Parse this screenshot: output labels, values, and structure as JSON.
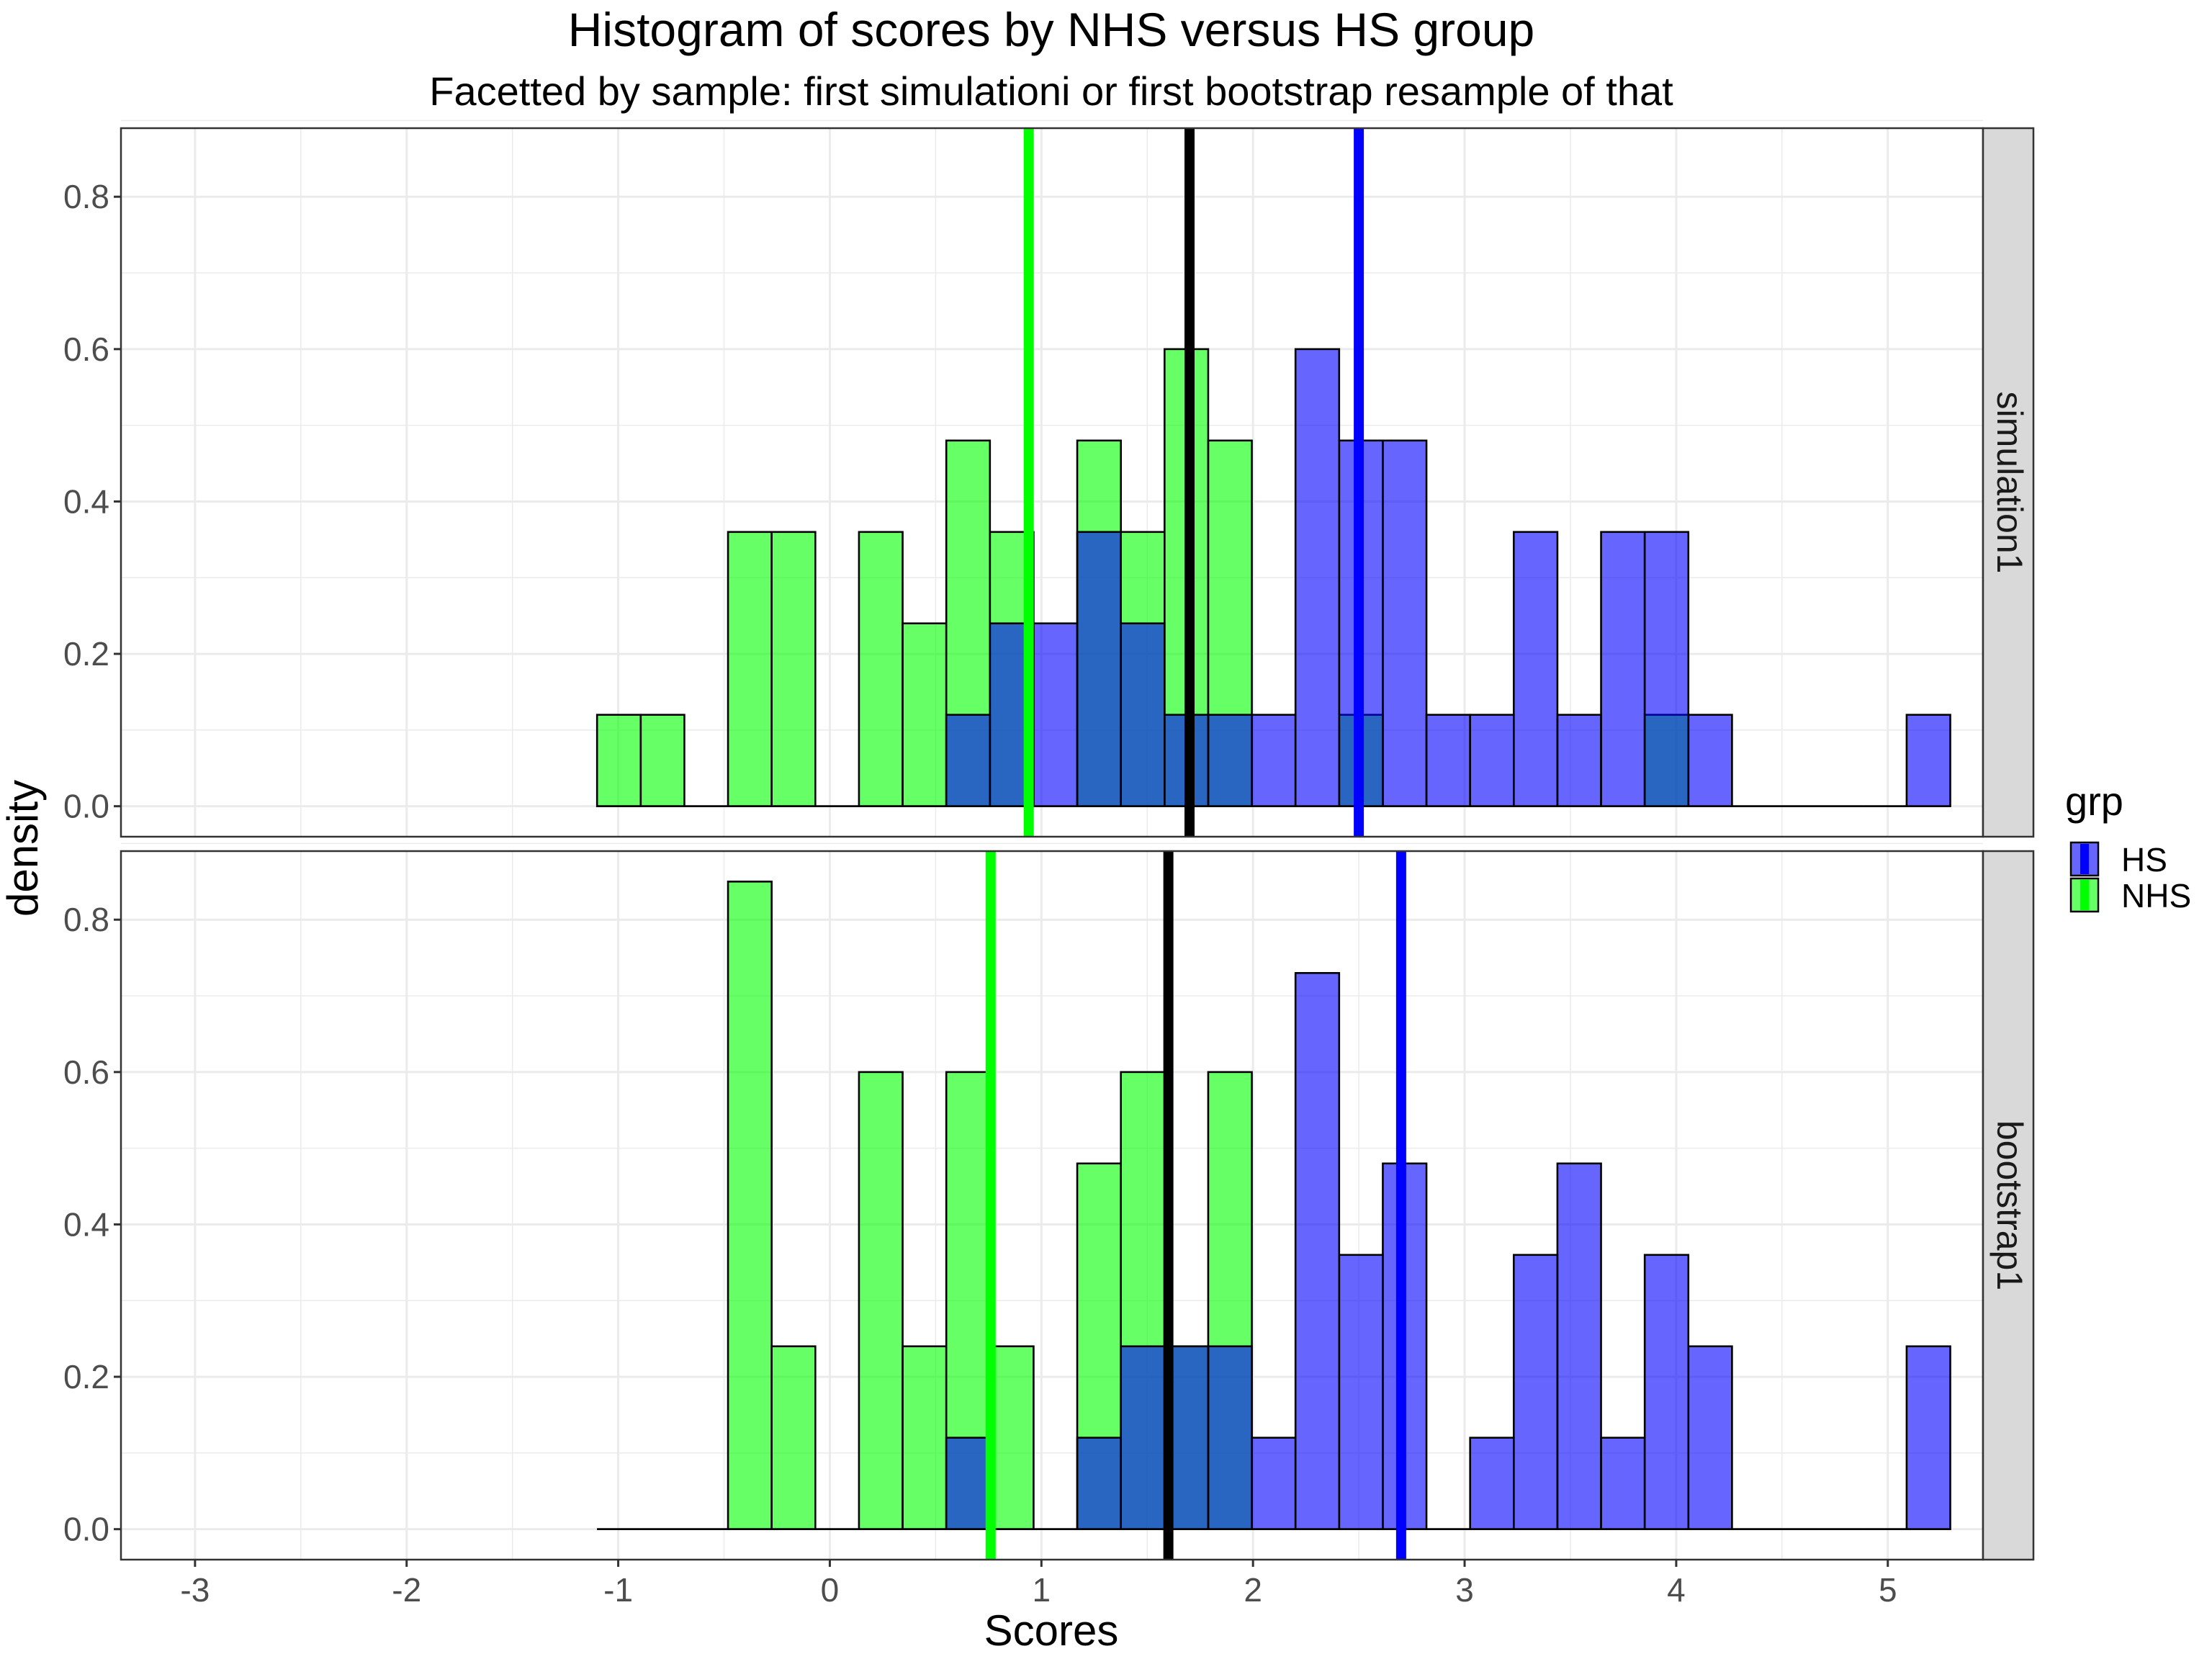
{
  "chart_data": {
    "type": "histogram",
    "title": "Histogram of scores by NHS versus HS group",
    "subtitle": "Facetted by sample: first simulationi or first bootstrap resample of that",
    "xlabel": "Scores",
    "ylabel": "density",
    "xlim": [
      -3.35,
      5.45
    ],
    "ylim": [
      -0.04,
      0.89
    ],
    "x_ticks": [
      -3,
      -2,
      -1,
      0,
      1,
      2,
      3,
      4,
      5
    ],
    "x_tick_labels": [
      "-3",
      "-2",
      "-1",
      "0",
      "1",
      "2",
      "3",
      "4",
      "5"
    ],
    "y_ticks": [
      0.0,
      0.2,
      0.4,
      0.6,
      0.8
    ],
    "y_tick_labels": [
      "0.0",
      "0.2",
      "0.4",
      "0.6",
      "0.8"
    ],
    "grid": true,
    "bin_start": -1.1,
    "bin_width": 0.2063,
    "legend": {
      "title": "grp",
      "position": "right",
      "items": [
        {
          "label": "HS",
          "color": "#0000ff"
        },
        {
          "label": "NHS",
          "color": "#00ff00"
        }
      ]
    },
    "colors": {
      "HS_fill": "#0000ff",
      "NHS_fill": "#00ff00",
      "overall_mean_line": "#000000",
      "panel_border": "#333333",
      "grid": "#ebebeb",
      "strip_fill": "#d9d9d9"
    },
    "facets": [
      {
        "strip_label": "simulation1",
        "series": [
          {
            "name": "NHS",
            "values": [
              0.12,
              0.12,
              0,
              0.36,
              0.36,
              0,
              0.36,
              0.24,
              0.48,
              0.36,
              0,
              0.48,
              0.36,
              0.6,
              0.48,
              0,
              0,
              0.12,
              0,
              0,
              0,
              0,
              0,
              0,
              0.12,
              0,
              0,
              0,
              0,
              0,
              0
            ]
          },
          {
            "name": "HS",
            "values": [
              0,
              0,
              0,
              0,
              0,
              0,
              0,
              0,
              0.12,
              0.24,
              0.24,
              0.36,
              0.24,
              0.12,
              0.12,
              0.12,
              0.6,
              0.48,
              0.48,
              0.12,
              0.12,
              0.36,
              0.12,
              0.36,
              0.36,
              0.12,
              0,
              0,
              0,
              0,
              0.12
            ]
          }
        ],
        "means": {
          "NHS": 0.94,
          "overall": 1.7,
          "HS": 2.5
        }
      },
      {
        "strip_label": "bootstrap1",
        "series": [
          {
            "name": "NHS",
            "values": [
              0,
              0,
              0,
              0.85,
              0.24,
              0,
              0.6,
              0.24,
              0.6,
              0.24,
              0,
              0.48,
              0.6,
              0.24,
              0.6,
              0,
              0,
              0,
              0,
              0,
              0,
              0,
              0,
              0,
              0,
              0,
              0,
              0,
              0,
              0,
              0
            ]
          },
          {
            "name": "HS",
            "values": [
              0,
              0,
              0,
              0,
              0,
              0,
              0,
              0,
              0.12,
              0,
              0,
              0.12,
              0.24,
              0.24,
              0.24,
              0.12,
              0.73,
              0.36,
              0.48,
              0,
              0.12,
              0.36,
              0.48,
              0.12,
              0.36,
              0.24,
              0,
              0,
              0,
              0,
              0.24
            ]
          }
        ],
        "means": {
          "NHS": 0.76,
          "overall": 1.6,
          "HS": 2.7
        }
      }
    ]
  }
}
